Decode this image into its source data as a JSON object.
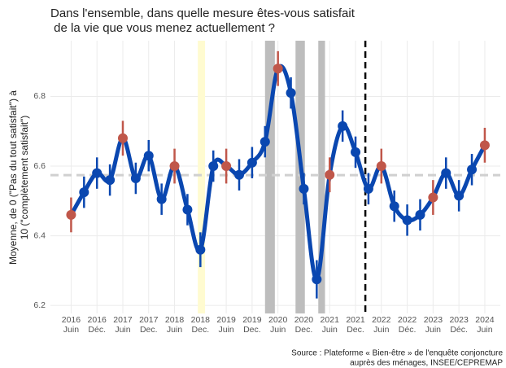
{
  "chart_data": {
    "type": "line",
    "title": [
      "Dans l'ensemble, dans quelle mesure êtes-vous satisfait",
      " de la vie que vous menez actuellement ?"
    ],
    "y_label": [
      "Moyenne, de 0 (\"Pas du tout satisfait\") à",
      "10 (\"complètement satisfait\")"
    ],
    "source": [
      "Source : Plateforme « Bien-être » de l'enquête conjoncture",
      "auprès des ménages, INSEE/CEPREMAP"
    ],
    "x": [
      2016.5,
      2016.75,
      2017,
      2017.25,
      2017.5,
      2017.75,
      2018,
      2018.25,
      2018.5,
      2018.75,
      2019,
      2019.25,
      2019.5,
      2019.75,
      2020,
      2020.25,
      2020.5,
      2020.75,
      2021,
      2021.25,
      2021.5,
      2021.75,
      2022,
      2022.25,
      2022.5,
      2022.75,
      2023,
      2023.25,
      2023.5,
      2023.75,
      2024,
      2024.25,
      2024.5
    ],
    "values": [
      6.46,
      6.525,
      6.58,
      6.56,
      6.68,
      6.565,
      6.63,
      6.505,
      6.6,
      6.475,
      6.36,
      6.6,
      6.6,
      6.575,
      6.61,
      6.67,
      6.88,
      6.81,
      6.535,
      6.275,
      6.575,
      6.715,
      6.64,
      6.535,
      6.6,
      6.485,
      6.445,
      6.46,
      6.51,
      6.58,
      6.515,
      6.59,
      6.66
    ],
    "errors": [
      0.05,
      0.045,
      0.045,
      0.045,
      0.05,
      0.045,
      0.045,
      0.045,
      0.05,
      0.045,
      0.05,
      0.045,
      0.05,
      0.045,
      0.045,
      0.045,
      0.05,
      0.045,
      0.045,
      0.055,
      0.05,
      0.045,
      0.045,
      0.045,
      0.05,
      0.045,
      0.045,
      0.045,
      0.05,
      0.045,
      0.045,
      0.045,
      0.05
    ],
    "point_colors": [
      "#c0574a",
      "#0a47b0",
      "#0a47b0",
      "#0a47b0",
      "#c0574a",
      "#0a47b0",
      "#0a47b0",
      "#0a47b0",
      "#c0574a",
      "#0a47b0",
      "#0a47b0",
      "#0a47b0",
      "#c0574a",
      "#0a47b0",
      "#0a47b0",
      "#0a47b0",
      "#c0574a",
      "#0a47b0",
      "#0a47b0",
      "#0a47b0",
      "#c0574a",
      "#0a47b0",
      "#0a47b0",
      "#0a47b0",
      "#c0574a",
      "#0a47b0",
      "#0a47b0",
      "#0a47b0",
      "#c0574a",
      "#0a47b0",
      "#0a47b0",
      "#0a47b0",
      "#c0574a"
    ],
    "color": "#0a47b0",
    "xlim": [
      2016.1,
      2024.8
    ],
    "ylim": [
      6.177,
      6.96
    ],
    "yticks": [
      6.2,
      6.4,
      6.6,
      6.8
    ],
    "xticks": [
      {
        "value": 2016.5,
        "label": "2016\nJuin"
      },
      {
        "value": 2017,
        "label": "2016\nDéc."
      },
      {
        "value": 2017.5,
        "label": "2017\nJuin"
      },
      {
        "value": 2018,
        "label": "2017\nDec."
      },
      {
        "value": 2018.5,
        "label": "2018\nJuin"
      },
      {
        "value": 2019,
        "label": "2018\nDec."
      },
      {
        "value": 2019.5,
        "label": "2019\nJuin"
      },
      {
        "value": 2020,
        "label": "2019\nDec."
      },
      {
        "value": 2020.5,
        "label": "2020\nJuin"
      },
      {
        "value": 2021,
        "label": "2020\nDec."
      },
      {
        "value": 2021.5,
        "label": "2021\nJuin"
      },
      {
        "value": 2022,
        "label": "2021\nDec."
      },
      {
        "value": 2022.5,
        "label": "2022\nJuin"
      },
      {
        "value": 2023,
        "label": "2022\nDéc."
      },
      {
        "value": 2023.5,
        "label": "2023\nJuin"
      },
      {
        "value": 2024,
        "label": "2023\nDéc."
      },
      {
        "value": 2024.5,
        "label": "2024\nJuin"
      }
    ],
    "bands": [
      {
        "start": 2018.95,
        "end": 2019.09,
        "color": "#fffbd0"
      },
      {
        "start": 2020.25,
        "end": 2020.44,
        "color": "#bdbdbd"
      },
      {
        "start": 2020.84,
        "end": 2021.02,
        "color": "#bdbdbd"
      },
      {
        "start": 2021.28,
        "end": 2021.41,
        "color": "#bdbdbd"
      }
    ],
    "hline": 6.574,
    "vline": 2022.19,
    "grid": true
  }
}
